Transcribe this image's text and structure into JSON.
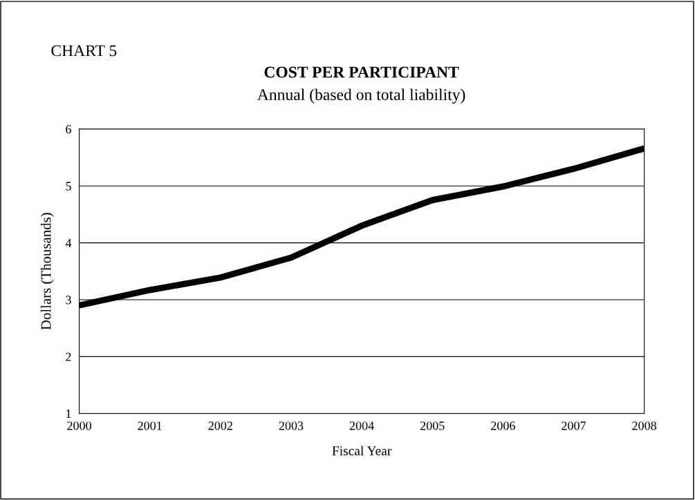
{
  "chart_data": {
    "type": "line",
    "title": "COST PER PARTICIPANT",
    "subtitle": "Annual (based on total liability)",
    "xlabel": "Fiscal Year",
    "ylabel": "Dollars (Thousands)",
    "annotations": [
      "CHART 5"
    ],
    "x": [
      2000,
      2001,
      2002,
      2003,
      2004,
      2005,
      2006,
      2007,
      2008
    ],
    "series": [
      {
        "color": "#000000",
        "values": [
          2.9,
          3.17,
          3.39,
          3.74,
          4.3,
          4.75,
          4.99,
          5.3,
          5.66
        ]
      }
    ],
    "xlim": [
      2000,
      2008
    ],
    "xticks": [
      2000,
      2001,
      2002,
      2003,
      2004,
      2005,
      2006,
      2007,
      2008
    ],
    "ylim": [
      1,
      6
    ],
    "yticks": [
      1,
      2,
      3,
      4,
      5,
      6
    ],
    "grid": "y",
    "legend": false,
    "marker": "none",
    "line_style": "solid"
  }
}
